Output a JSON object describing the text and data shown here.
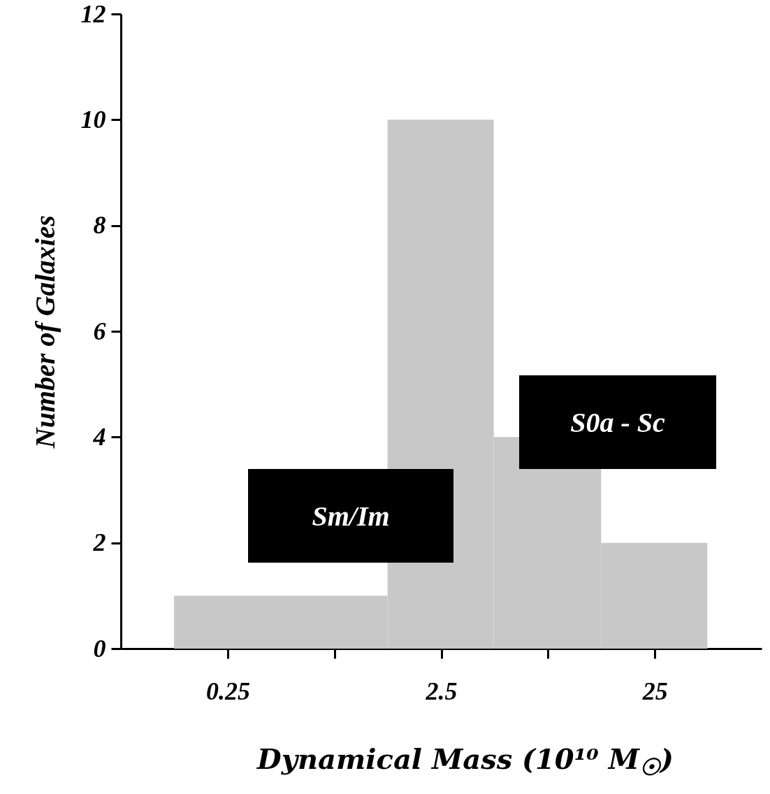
{
  "chart_data": {
    "type": "histogram",
    "xlabel": "Dynamical Mass (10¹⁰ M$_{☉}$)",
    "ylabel": "Number of Galaxies",
    "bins": [
      0.14,
      1.4,
      4.4,
      14,
      44
    ],
    "values": [
      1,
      10,
      4,
      2
    ],
    "color": "#c8c8c8",
    "log": "x",
    "xlim": [
      0.079,
      79
    ],
    "xticks": [
      0.25,
      {
        "value": 0.79,
        "label": null
      },
      2.5,
      {
        "value": 7.9,
        "label": null
      },
      25
    ],
    "ylim": [
      0,
      12
    ],
    "yticks": [
      0,
      2,
      4,
      6,
      8,
      10,
      12
    ],
    "grid": false,
    "annotations": [
      "Sm/Im",
      "S0a - Sc"
    ]
  }
}
